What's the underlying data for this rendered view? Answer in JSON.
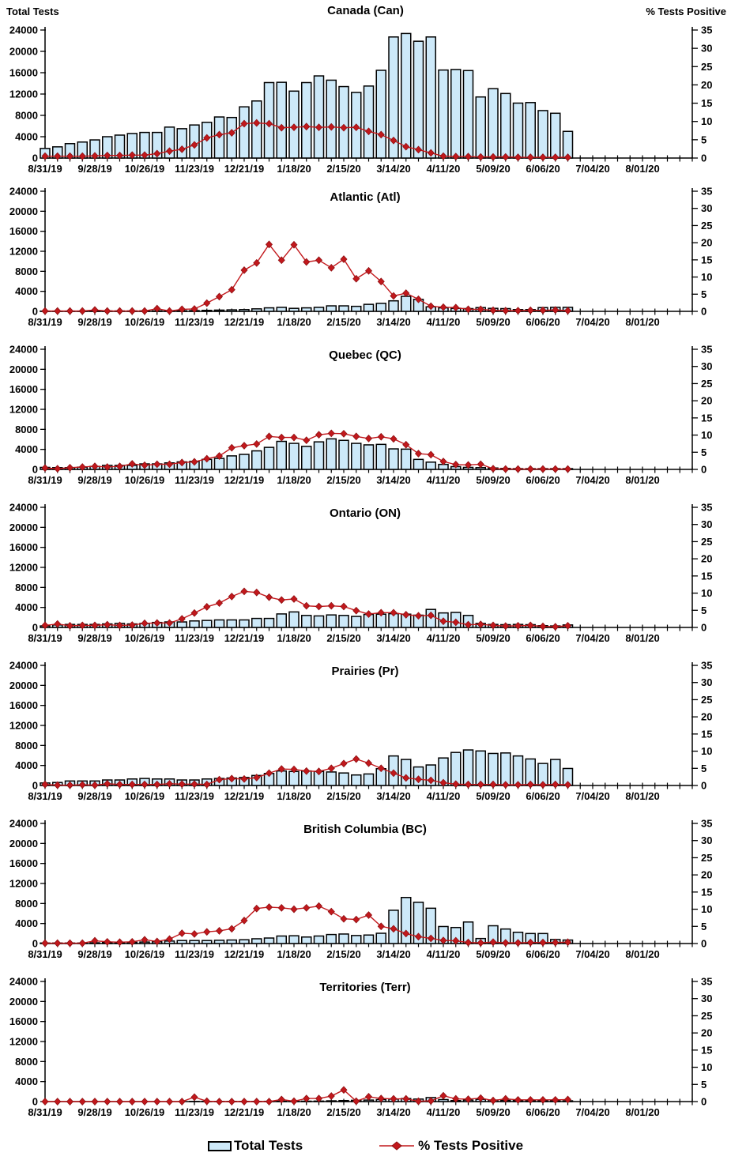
{
  "header": {
    "left_axis_title": "Total Tests",
    "right_axis_title": "% Tests Positive"
  },
  "legend": {
    "total_tests_label": "Total Tests",
    "pct_positive_label": "% Tests Positive"
  },
  "colors": {
    "bar_fill": "#CDE9F9",
    "bar_stroke": "#000000",
    "line": "#C2181C",
    "marker": "#C2181C",
    "marker_stroke": "#8E1013",
    "axis": "#000000"
  },
  "chart_data": {
    "type": "combo-bar-line-small-multiples",
    "bar_series_name": "Total Tests",
    "line_series_name": "% Tests Positive",
    "x_weekly_dates": [
      "8/31/19",
      "9/7/19",
      "9/14/19",
      "9/21/19",
      "9/28/19",
      "10/5/19",
      "10/12/19",
      "10/19/19",
      "10/26/19",
      "11/2/19",
      "11/9/19",
      "11/16/19",
      "11/23/19",
      "11/30/19",
      "12/7/19",
      "12/14/19",
      "12/21/19",
      "12/28/19",
      "1/4/20",
      "1/11/20",
      "1/18/20",
      "1/25/20",
      "2/1/20",
      "2/8/20",
      "2/15/20",
      "2/22/20",
      "2/29/20",
      "3/7/20",
      "3/14/20",
      "3/21/20",
      "3/28/20",
      "4/4/20",
      "4/11/20",
      "4/18/20",
      "4/25/20",
      "5/2/20",
      "5/9/20",
      "5/16/20",
      "5/23/20",
      "5/30/20",
      "6/6/20",
      "6/13/20",
      "6/20/20"
    ],
    "x_tick_labels": [
      "8/31/19",
      "9/28/19",
      "10/26/19",
      "11/23/19",
      "12/21/19",
      "1/18/20",
      "2/15/20",
      "3/14/20",
      "4/11/20",
      "5/09/20",
      "6/06/20",
      "7/04/20",
      "8/01/20"
    ],
    "y_axis_left": {
      "title": "Total Tests",
      "min": 0,
      "max": 24000,
      "step": 4000,
      "tick_labels": [
        "0",
        "4000",
        "8000",
        "12000",
        "16000",
        "20000",
        "24000"
      ]
    },
    "y_axis_right": {
      "title": "% Tests Positive",
      "min": 0,
      "max": 35,
      "step": 5,
      "tick_labels": [
        "0",
        "5",
        "10",
        "15",
        "20",
        "25",
        "30",
        "35"
      ]
    },
    "panels": [
      {
        "key": "canada",
        "title": "Canada (Can)",
        "tests": [
          1800,
          2100,
          2700,
          3000,
          3400,
          4000,
          4300,
          4600,
          4800,
          4800,
          5800,
          5500,
          6200,
          6700,
          7700,
          7600,
          9600,
          10700,
          14150,
          14200,
          12550,
          14150,
          15400,
          14600,
          13400,
          12300,
          13500,
          16450,
          22700,
          23350,
          21900,
          22700,
          16500,
          16600,
          16400,
          11450,
          13000,
          12100,
          10300,
          10400,
          8900,
          8400,
          5000
        ],
        "pct_positive": [
          0.5,
          0.5,
          0.5,
          0.5,
          0.6,
          0.7,
          0.7,
          0.8,
          0.8,
          1.2,
          1.9,
          2.4,
          3.6,
          5.5,
          6.4,
          6.9,
          9.4,
          9.6,
          9.4,
          8.3,
          8.4,
          8.6,
          8.4,
          8.5,
          8.3,
          8.4,
          7.3,
          6.4,
          4.8,
          3.1,
          2.3,
          1.4,
          0.5,
          0.4,
          0.4,
          0.3,
          0.3,
          0.3,
          0.2,
          0.2,
          0.2,
          0.2,
          0.2
        ]
      },
      {
        "key": "atlantic",
        "title": "Atlantic (Atl)",
        "tests": [
          50,
          50,
          50,
          50,
          80,
          80,
          80,
          80,
          100,
          100,
          100,
          120,
          150,
          200,
          250,
          300,
          350,
          500,
          700,
          800,
          600,
          700,
          800,
          1100,
          1100,
          1000,
          1400,
          1600,
          2100,
          3000,
          2400,
          900,
          700,
          600,
          550,
          750,
          600,
          550,
          350,
          350,
          750,
          800,
          800
        ],
        "pct_positive": [
          0.1,
          0.1,
          0.1,
          0.1,
          0.4,
          0.1,
          0.1,
          0.1,
          0.1,
          0.8,
          0.1,
          0.6,
          0.7,
          2.4,
          4.3,
          6.3,
          12.0,
          14.1,
          19.5,
          14.9,
          19.4,
          14.4,
          14.9,
          12.7,
          15.2,
          9.5,
          11.8,
          8.7,
          4.5,
          5.3,
          3.5,
          1.5,
          1.2,
          1.1,
          0.6,
          0.6,
          0.3,
          0.2,
          0.2,
          0.3,
          0.3,
          0.4,
          0.2
        ]
      },
      {
        "key": "quebec",
        "title": "Quebec (QC)",
        "tests": [
          400,
          350,
          350,
          450,
          600,
          800,
          800,
          800,
          1100,
          1100,
          1300,
          1500,
          1600,
          2000,
          2200,
          2700,
          3000,
          3700,
          4400,
          5600,
          5200,
          4600,
          5500,
          6100,
          5800,
          5200,
          4900,
          5000,
          4100,
          4050,
          2000,
          1450,
          1000,
          550,
          400,
          350,
          280,
          200,
          150,
          150,
          150,
          150,
          150
        ],
        "pct_positive": [
          0.4,
          0.2,
          0.5,
          0.7,
          0.9,
          0.7,
          0.9,
          1.6,
          1.2,
          1.5,
          1.5,
          2.0,
          2.2,
          3.1,
          3.9,
          6.3,
          6.9,
          7.4,
          9.6,
          9.3,
          9.3,
          8.5,
          10.1,
          10.5,
          10.4,
          9.6,
          9.0,
          9.5,
          8.9,
          7.2,
          4.6,
          4.3,
          2.3,
          1.4,
          1.3,
          1.5,
          0.2,
          0.1,
          0.1,
          0.1,
          0.1,
          0.1,
          0.1
        ]
      },
      {
        "key": "ontario",
        "title": "Ontario (ON)",
        "tests": [
          300,
          500,
          600,
          600,
          600,
          700,
          800,
          700,
          800,
          1000,
          1100,
          1100,
          1300,
          1400,
          1500,
          1500,
          1500,
          1800,
          1800,
          2700,
          3100,
          2400,
          2300,
          2500,
          2400,
          2200,
          2600,
          2650,
          2750,
          2650,
          2450,
          3600,
          2900,
          3000,
          2400,
          800,
          600,
          550,
          600,
          550,
          350,
          300,
          500
        ],
        "pct_positive": [
          0.6,
          1.0,
          0.5,
          0.6,
          0.6,
          0.8,
          0.6,
          0.7,
          1.2,
          1.3,
          1.3,
          2.5,
          4.2,
          6.0,
          7.1,
          9.0,
          10.5,
          10.2,
          8.8,
          8.0,
          8.3,
          6.3,
          6.1,
          6.3,
          6.1,
          4.9,
          3.9,
          4.3,
          4.3,
          3.7,
          3.4,
          3.5,
          1.8,
          1.5,
          0.8,
          0.9,
          0.6,
          0.4,
          0.5,
          0.6,
          0.3,
          0.2,
          0.5
        ]
      },
      {
        "key": "prairies",
        "title": "Prairies (Pr)",
        "tests": [
          500,
          600,
          900,
          900,
          900,
          1100,
          1100,
          1300,
          1400,
          1300,
          1300,
          1100,
          1100,
          1300,
          1400,
          1500,
          1600,
          2000,
          2400,
          2900,
          2800,
          2900,
          2800,
          2700,
          2500,
          2100,
          2300,
          3350,
          5900,
          5200,
          3700,
          4100,
          5500,
          6600,
          7100,
          6900,
          6400,
          6500,
          5900,
          5300,
          4400,
          5200,
          3400
        ],
        "pct_positive": [
          0.3,
          0.1,
          0.1,
          0.2,
          0.1,
          0.5,
          0.3,
          0.3,
          0.3,
          0.3,
          0.5,
          0.4,
          0.4,
          0.3,
          1.7,
          2.0,
          1.9,
          2.3,
          3.6,
          4.8,
          4.7,
          4.2,
          4.1,
          5.0,
          6.4,
          7.7,
          6.5,
          5.0,
          3.6,
          2.2,
          1.8,
          1.5,
          0.8,
          0.4,
          0.3,
          0.3,
          0.3,
          0.2,
          0.2,
          0.3,
          0.2,
          0.3,
          0.2
        ]
      },
      {
        "key": "bc",
        "title": "British Columbia (BC)",
        "tests": [
          100,
          100,
          100,
          100,
          150,
          200,
          200,
          250,
          300,
          350,
          500,
          600,
          600,
          600,
          650,
          700,
          750,
          950,
          1100,
          1500,
          1550,
          1300,
          1500,
          1800,
          1900,
          1600,
          1700,
          2050,
          6650,
          9200,
          8250,
          7050,
          3400,
          3200,
          4300,
          1000,
          3550,
          2900,
          2250,
          2000,
          2000,
          800,
          700
        ],
        "pct_positive": [
          0.1,
          0.1,
          0.1,
          0.1,
          0.8,
          0.5,
          0.4,
          0.5,
          1.1,
          0.6,
          1.3,
          3.0,
          2.8,
          3.4,
          3.7,
          4.3,
          6.7,
          10.2,
          10.6,
          10.4,
          10.0,
          10.4,
          10.9,
          9.3,
          7.2,
          7.0,
          8.3,
          5.0,
          4.3,
          2.9,
          2.0,
          1.5,
          0.9,
          0.8,
          0.3,
          0.2,
          0.4,
          0.2,
          0.2,
          0.3,
          0.3,
          0.3,
          0.4
        ]
      },
      {
        "key": "territories",
        "title": "Territories (Terr)",
        "tests": [
          0,
          0,
          0,
          0,
          0,
          0,
          0,
          0,
          0,
          0,
          0,
          0,
          30,
          30,
          30,
          30,
          30,
          30,
          50,
          80,
          80,
          80,
          100,
          150,
          200,
          250,
          300,
          400,
          500,
          600,
          500,
          800,
          400,
          200,
          300,
          450,
          300,
          250,
          200,
          200,
          200,
          150,
          150
        ],
        "pct_positive": [
          0,
          0,
          0,
          0,
          0,
          0,
          0,
          0,
          0,
          0,
          0,
          0,
          1.3,
          0.1,
          0,
          0,
          0,
          0,
          0,
          0.6,
          0.1,
          0.9,
          0.9,
          1.6,
          3.4,
          0.1,
          1.4,
          0.9,
          0.8,
          0.8,
          0.1,
          0.2,
          1.7,
          0.8,
          0.7,
          1.0,
          0.3,
          0.8,
          0.5,
          0.5,
          0.5,
          0.5,
          0.6
        ]
      }
    ]
  }
}
